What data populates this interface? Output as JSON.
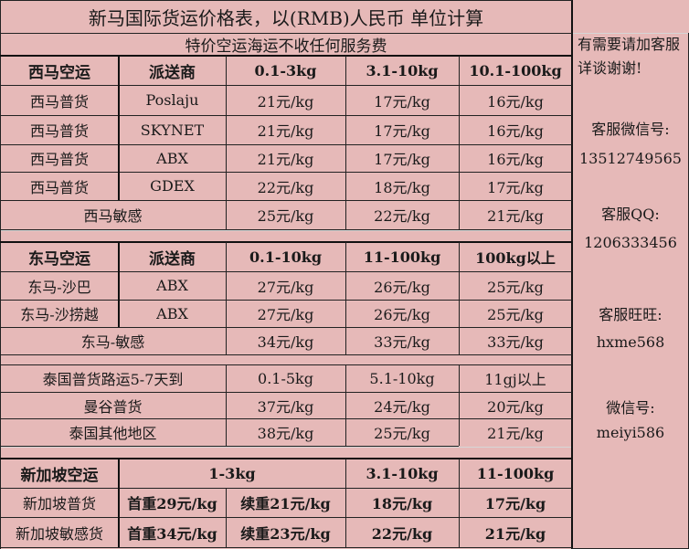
{
  "title": "新马国际货运价格表，以(RMB)人民币 单位计算",
  "subtitle": "特价空运海运不收任何服务费",
  "sidebar": {
    "contact_intro": "有需要请加客服详谈谢谢!",
    "wechat_label": "客服微信号:",
    "wechat_value": "13512749565",
    "qq_label": "客服QQ:",
    "qq_value": "1206333456",
    "wangwang_label": "客服旺旺:",
    "wangwang_value": "hxme568",
    "wechat2_label": "微信号:",
    "wechat2_value": "meiyi586"
  },
  "west": {
    "header": [
      "西马空运",
      "派送商",
      "0.1-3kg",
      "3.1-10kg",
      "10.1-100kg"
    ],
    "rows": [
      [
        "西马普货",
        "Poslaju",
        "21元/kg",
        "17元/kg",
        "16元/kg"
      ],
      [
        "西马普货",
        "SKYNET",
        "21元/kg",
        "17元/kg",
        "16元/kg"
      ],
      [
        "西马普货",
        "ABX",
        "21元/kg",
        "17元/kg",
        "16元/kg"
      ],
      [
        "西马普货",
        "GDEX",
        "22元/kg",
        "18元/kg",
        "17元/kg"
      ]
    ],
    "sensitive": [
      "西马敏感",
      "25元/kg",
      "22元/kg",
      "21元/kg"
    ]
  },
  "east": {
    "header": [
      "东马空运",
      "派送商",
      "0.1-10kg",
      "11-100kg",
      "100kg以上"
    ],
    "rows": [
      [
        "东马-沙巴",
        "ABX",
        "27元/kg",
        "26元/kg",
        "25元/kg"
      ],
      [
        "东马-沙捞越",
        "ABX",
        "27元/kg",
        "26元/kg",
        "25元/kg"
      ]
    ],
    "sensitive": [
      "东马-敏感",
      "34元/kg",
      "33元/kg",
      "33元/kg"
    ]
  },
  "thai": {
    "rows": [
      [
        "泰国普货路运5-7天到",
        "0.1-5kg",
        "5.1-10kg",
        "11gj以上"
      ],
      [
        "曼谷普货",
        "37元/kg",
        "24元/kg",
        "20元/kg"
      ],
      [
        "泰国其他地区",
        "38元/kg",
        "25元/kg",
        "21元/kg"
      ]
    ]
  },
  "sg": {
    "header": [
      "新加坡空运",
      "1-3kg",
      "3.1-10kg",
      "11-100kg"
    ],
    "rows": [
      [
        "新加坡普货",
        "首重29元/kg",
        "续重21元/kg",
        "18元/kg",
        "17元/kg"
      ],
      [
        "新加坡敏感货",
        "首重34元/kg",
        "续重23元/kg",
        "22元/kg",
        "21元/kg"
      ]
    ]
  }
}
